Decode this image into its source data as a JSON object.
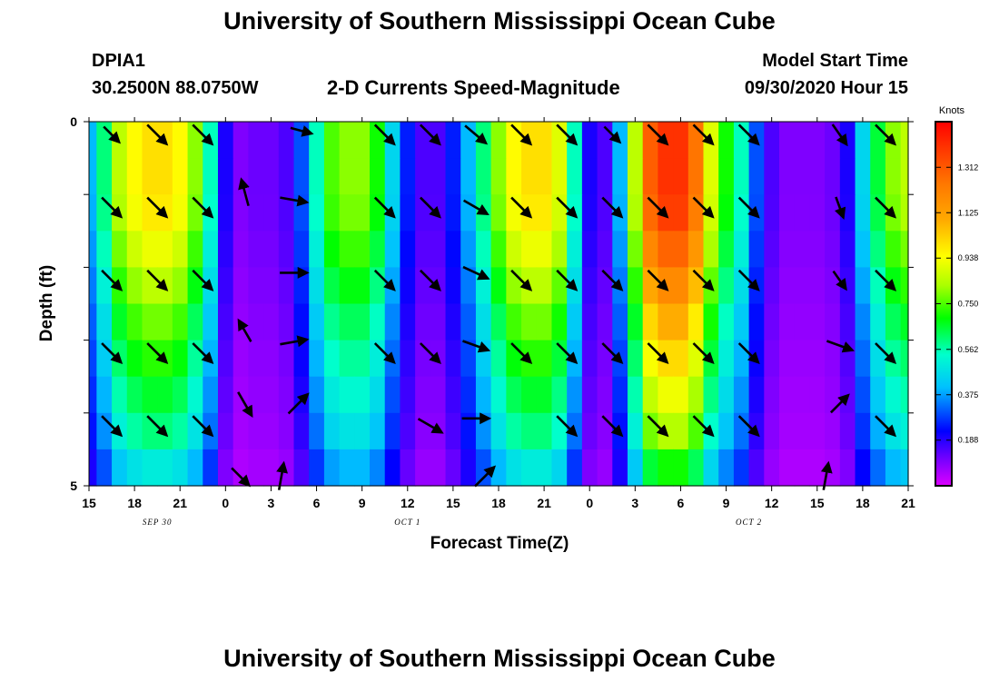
{
  "header": {
    "title": "University of Southern Mississippi Ocean Cube",
    "station": "DPIA1",
    "coords": "30.2500N 88.0750W",
    "subtitle": "2-D Currents Speed-Magnitude",
    "model_label": "Model Start Time",
    "model_time": "09/30/2020 Hour 15"
  },
  "footer": {
    "title": "University of Southern Mississippi Ocean Cube"
  },
  "chart_data": {
    "type": "heatmap",
    "title": "2-D Currents Speed-Magnitude",
    "xlabel": "Forecast Time(Z)",
    "ylabel": "Depth (ft)",
    "x_range_hours_from_start": [
      0,
      54
    ],
    "y_range_ft": [
      0,
      5
    ],
    "y_ticks": [
      {
        "value": 0,
        "label": "0"
      },
      {
        "value": 5,
        "label": "5"
      }
    ],
    "x_ticks": [
      {
        "h": 0,
        "label": "15"
      },
      {
        "h": 3,
        "label": "18"
      },
      {
        "h": 6,
        "label": "21"
      },
      {
        "h": 9,
        "label": "0"
      },
      {
        "h": 12,
        "label": "3"
      },
      {
        "h": 15,
        "label": "6"
      },
      {
        "h": 18,
        "label": "9"
      },
      {
        "h": 21,
        "label": "12"
      },
      {
        "h": 24,
        "label": "15"
      },
      {
        "h": 27,
        "label": "18"
      },
      {
        "h": 30,
        "label": "21"
      },
      {
        "h": 33,
        "label": "0"
      },
      {
        "h": 36,
        "label": "3"
      },
      {
        "h": 39,
        "label": "6"
      },
      {
        "h": 42,
        "label": "9"
      },
      {
        "h": 45,
        "label": "12"
      },
      {
        "h": 48,
        "label": "15"
      },
      {
        "h": 51,
        "label": "18"
      },
      {
        "h": 54,
        "label": "21"
      }
    ],
    "date_labels": [
      {
        "h": 4.5,
        "label": "SEP 30"
      },
      {
        "h": 21,
        "label": "OCT 1"
      },
      {
        "h": 43.5,
        "label": "OCT 2"
      }
    ],
    "colorbar": {
      "unit": "Knots",
      "min": 0,
      "max": 1.5,
      "tick_labels": [
        "1.312",
        "1.125",
        "0.938",
        "0.750",
        "0.562",
        "0.375",
        "0.188"
      ]
    },
    "depth_layers_ft": [
      0.25,
      0.75,
      1.25,
      1.75,
      2.25,
      2.75,
      3.25,
      3.75,
      4.25,
      4.75
    ],
    "profile_hours": [
      0,
      1,
      2,
      3,
      4,
      5,
      6,
      7,
      8,
      9,
      10,
      11,
      12,
      13,
      14,
      15,
      16,
      17,
      18,
      19,
      20,
      21,
      22,
      23,
      24,
      25,
      26,
      27,
      28,
      29,
      30,
      31,
      32,
      33,
      34,
      35,
      36,
      37,
      38,
      39,
      40,
      41,
      42,
      43,
      44,
      45,
      46,
      47,
      48,
      49,
      50,
      51,
      52,
      53,
      54
    ],
    "surface_speed_profile": [
      0.4,
      0.6,
      0.85,
      0.95,
      1.0,
      1.0,
      0.95,
      0.8,
      0.55,
      0.2,
      0.1,
      0.12,
      0.12,
      0.15,
      0.3,
      0.55,
      0.75,
      0.8,
      0.8,
      0.7,
      0.45,
      0.25,
      0.15,
      0.15,
      0.25,
      0.4,
      0.6,
      0.8,
      0.95,
      1.0,
      1.0,
      0.9,
      0.55,
      0.2,
      0.15,
      0.4,
      0.85,
      1.3,
      1.4,
      1.4,
      1.25,
      0.9,
      0.7,
      0.55,
      0.3,
      0.15,
      0.1,
      0.1,
      0.1,
      0.12,
      0.2,
      0.45,
      0.65,
      0.8,
      0.85
    ],
    "depth_factors": [
      1.0,
      1.0,
      0.98,
      0.92,
      0.85,
      0.78,
      0.72,
      0.66,
      0.6,
      0.5
    ],
    "vectors": [
      {
        "h": 1,
        "d": 0.1,
        "dir": 135,
        "len": 0.8
      },
      {
        "h": 4,
        "d": 0.1,
        "dir": 135,
        "len": 1.0
      },
      {
        "h": 7,
        "d": 0.1,
        "dir": 135,
        "len": 1.0
      },
      {
        "h": 13.5,
        "d": 0.05,
        "dir": 105,
        "len": 0.8
      },
      {
        "h": 19,
        "d": 0.1,
        "dir": 135,
        "len": 1.0
      },
      {
        "h": 22,
        "d": 0.1,
        "dir": 135,
        "len": 1.0
      },
      {
        "h": 25,
        "d": 0.1,
        "dir": 130,
        "len": 1.0
      },
      {
        "h": 28,
        "d": 0.1,
        "dir": 135,
        "len": 1.0
      },
      {
        "h": 31,
        "d": 0.1,
        "dir": 135,
        "len": 1.0
      },
      {
        "h": 34,
        "d": 0.1,
        "dir": 135,
        "len": 0.8
      },
      {
        "h": 37,
        "d": 0.1,
        "dir": 135,
        "len": 1.0
      },
      {
        "h": 40,
        "d": 0.1,
        "dir": 135,
        "len": 1.0
      },
      {
        "h": 43,
        "d": 0.1,
        "dir": 135,
        "len": 1.0
      },
      {
        "h": 49,
        "d": 0.1,
        "dir": 145,
        "len": 0.9
      },
      {
        "h": 52,
        "d": 0.1,
        "dir": 135,
        "len": 1.0
      },
      {
        "h": 1,
        "d": 1.1,
        "dir": 135,
        "len": 1.0
      },
      {
        "h": 4,
        "d": 1.1,
        "dir": 135,
        "len": 1.0
      },
      {
        "h": 7,
        "d": 1.1,
        "dir": 135,
        "len": 1.0
      },
      {
        "h": 9.8,
        "d": 0.9,
        "dir": 345,
        "len": 1.0
      },
      {
        "h": 13,
        "d": 1.0,
        "dir": 100,
        "len": 1.0
      },
      {
        "h": 19,
        "d": 1.1,
        "dir": 135,
        "len": 1.0
      },
      {
        "h": 22,
        "d": 1.1,
        "dir": 135,
        "len": 1.0
      },
      {
        "h": 25,
        "d": 1.1,
        "dir": 120,
        "len": 1.0
      },
      {
        "h": 28,
        "d": 1.1,
        "dir": 135,
        "len": 1.0
      },
      {
        "h": 31,
        "d": 1.1,
        "dir": 135,
        "len": 1.0
      },
      {
        "h": 34,
        "d": 1.1,
        "dir": 135,
        "len": 1.0
      },
      {
        "h": 37,
        "d": 1.1,
        "dir": 135,
        "len": 1.0
      },
      {
        "h": 40,
        "d": 1.1,
        "dir": 135,
        "len": 1.0
      },
      {
        "h": 43,
        "d": 1.1,
        "dir": 135,
        "len": 1.0
      },
      {
        "h": 49,
        "d": 1.1,
        "dir": 160,
        "len": 0.8
      },
      {
        "h": 52,
        "d": 1.1,
        "dir": 135,
        "len": 1.0
      },
      {
        "h": 1,
        "d": 2.1,
        "dir": 135,
        "len": 1.0
      },
      {
        "h": 4,
        "d": 2.1,
        "dir": 135,
        "len": 1.0
      },
      {
        "h": 7,
        "d": 2.1,
        "dir": 135,
        "len": 1.0
      },
      {
        "h": 13,
        "d": 2.0,
        "dir": 90,
        "len": 1.0
      },
      {
        "h": 19,
        "d": 2.1,
        "dir": 135,
        "len": 1.0
      },
      {
        "h": 22,
        "d": 2.1,
        "dir": 135,
        "len": 1.0
      },
      {
        "h": 25,
        "d": 2.0,
        "dir": 115,
        "len": 1.0
      },
      {
        "h": 28,
        "d": 2.1,
        "dir": 135,
        "len": 1.0
      },
      {
        "h": 31,
        "d": 2.1,
        "dir": 135,
        "len": 1.0
      },
      {
        "h": 34,
        "d": 2.1,
        "dir": 135,
        "len": 1.0
      },
      {
        "h": 37,
        "d": 2.1,
        "dir": 135,
        "len": 1.0
      },
      {
        "h": 40,
        "d": 2.1,
        "dir": 135,
        "len": 1.0
      },
      {
        "h": 43,
        "d": 2.1,
        "dir": 135,
        "len": 1.0
      },
      {
        "h": 49,
        "d": 2.1,
        "dir": 145,
        "len": 0.8
      },
      {
        "h": 52,
        "d": 2.1,
        "dir": 135,
        "len": 1.0
      },
      {
        "h": 1,
        "d": 3.1,
        "dir": 135,
        "len": 1.0
      },
      {
        "h": 4,
        "d": 3.1,
        "dir": 135,
        "len": 1.0
      },
      {
        "h": 7,
        "d": 3.1,
        "dir": 135,
        "len": 1.0
      },
      {
        "h": 9.8,
        "d": 2.8,
        "dir": 330,
        "len": 0.9
      },
      {
        "h": 13,
        "d": 2.95,
        "dir": 80,
        "len": 1.0
      },
      {
        "h": 19,
        "d": 3.1,
        "dir": 135,
        "len": 1.0
      },
      {
        "h": 22,
        "d": 3.1,
        "dir": 135,
        "len": 1.0
      },
      {
        "h": 25,
        "d": 3.0,
        "dir": 110,
        "len": 1.0
      },
      {
        "h": 28,
        "d": 3.1,
        "dir": 135,
        "len": 1.0
      },
      {
        "h": 31,
        "d": 3.1,
        "dir": 135,
        "len": 1.0
      },
      {
        "h": 34,
        "d": 3.1,
        "dir": 135,
        "len": 1.0
      },
      {
        "h": 37,
        "d": 3.1,
        "dir": 135,
        "len": 1.0
      },
      {
        "h": 40,
        "d": 3.1,
        "dir": 135,
        "len": 1.0
      },
      {
        "h": 43,
        "d": 3.1,
        "dir": 135,
        "len": 1.0
      },
      {
        "h": 49,
        "d": 3.0,
        "dir": 110,
        "len": 1.0
      },
      {
        "h": 52,
        "d": 3.1,
        "dir": 135,
        "len": 1.0
      },
      {
        "h": 1,
        "d": 4.1,
        "dir": 135,
        "len": 1.0
      },
      {
        "h": 4,
        "d": 4.1,
        "dir": 135,
        "len": 1.0
      },
      {
        "h": 7,
        "d": 4.1,
        "dir": 135,
        "len": 1.0
      },
      {
        "h": 9.8,
        "d": 3.8,
        "dir": 150,
        "len": 1.0
      },
      {
        "h": 13.3,
        "d": 3.8,
        "dir": 45,
        "len": 1.0
      },
      {
        "h": 22,
        "d": 4.1,
        "dir": 120,
        "len": 1.0
      },
      {
        "h": 25,
        "d": 4.0,
        "dir": 90,
        "len": 1.0
      },
      {
        "h": 31,
        "d": 4.1,
        "dir": 135,
        "len": 1.0
      },
      {
        "h": 34,
        "d": 4.1,
        "dir": 135,
        "len": 1.0
      },
      {
        "h": 37,
        "d": 4.1,
        "dir": 135,
        "len": 1.0
      },
      {
        "h": 40,
        "d": 4.1,
        "dir": 135,
        "len": 1.0
      },
      {
        "h": 43,
        "d": 4.1,
        "dir": 135,
        "len": 1.0
      },
      {
        "h": 49,
        "d": 3.8,
        "dir": 45,
        "len": 0.9
      },
      {
        "h": 52,
        "d": 4.1,
        "dir": 135,
        "len": 1.0
      },
      {
        "h": 9.5,
        "d": 4.8,
        "dir": 135,
        "len": 0.9
      },
      {
        "h": 12.2,
        "d": 4.8,
        "dir": 10,
        "len": 1.0
      },
      {
        "h": 25.6,
        "d": 4.8,
        "dir": 45,
        "len": 1.0
      },
      {
        "h": 48.1,
        "d": 4.8,
        "dir": 10,
        "len": 1.0
      }
    ]
  }
}
